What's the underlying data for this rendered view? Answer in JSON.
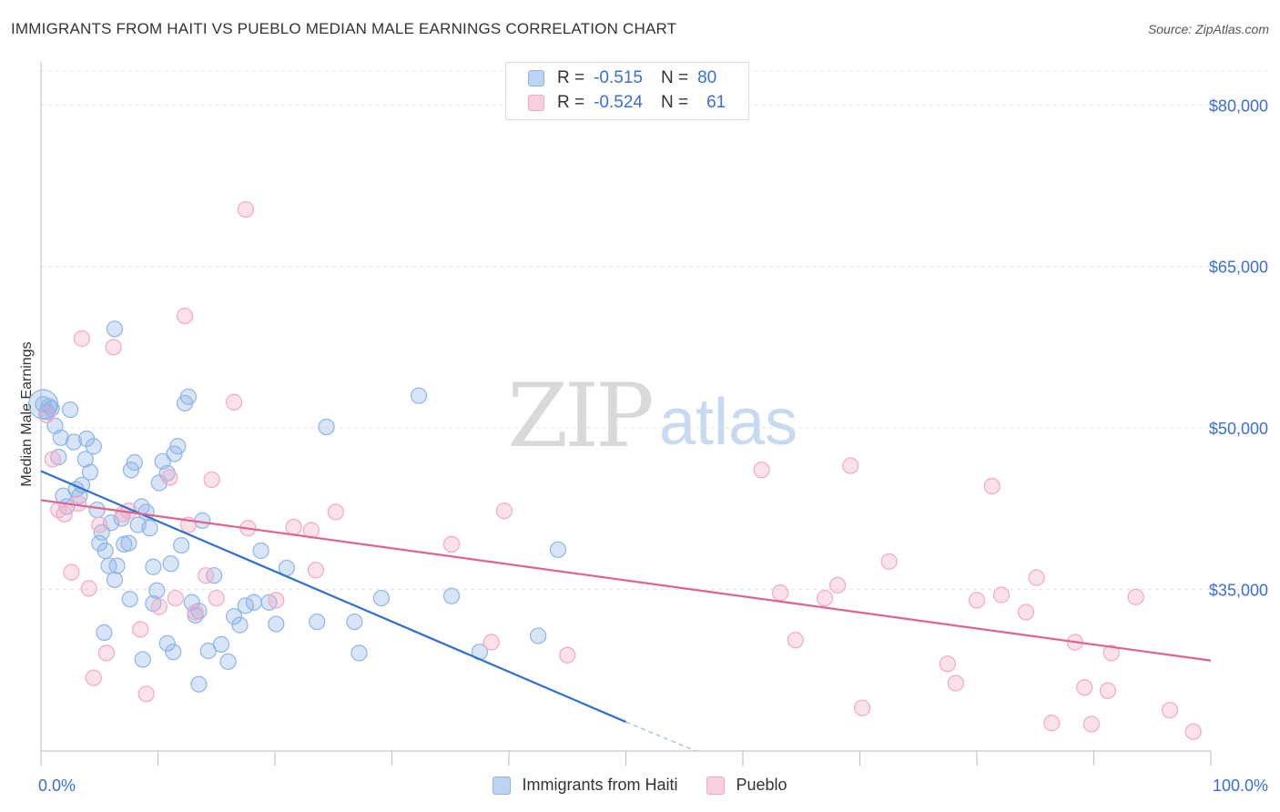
{
  "header": {
    "title": "IMMIGRANTS FROM HAITI VS PUEBLO MEDIAN MALE EARNINGS CORRELATION CHART",
    "source": "Source: ZipAtlas.com"
  },
  "watermark": {
    "zip": "ZIP",
    "atlas": "atlas"
  },
  "legend": {
    "rows": [
      {
        "r_label": "R =",
        "r_value": "-0.515",
        "n_label": "N =",
        "n_value": "80"
      },
      {
        "r_label": "R =",
        "r_value": "-0.524",
        "n_label": "N =",
        "n_value": "61"
      }
    ]
  },
  "chart_data": {
    "type": "scatter",
    "title": "IMMIGRANTS FROM HAITI VS PUEBLO MEDIAN MALE EARNINGS CORRELATION CHART",
    "xlabel": "",
    "ylabel": "Median Male Earnings",
    "xlim": [
      0,
      100
    ],
    "ylim": [
      20000,
      84000
    ],
    "x_tick_labels": [
      "0.0%",
      "100.0%"
    ],
    "y_ticks": [
      35000,
      50000,
      65000,
      80000
    ],
    "y_tick_labels": [
      "$35,000",
      "$50,000",
      "$65,000",
      "$80,000"
    ],
    "grid": true,
    "legend_position": "top-center",
    "series": [
      {
        "name": "Immigrants from Haiti",
        "color": "#8fb4e8",
        "line_color": "#2f6fd0",
        "trend": {
          "x": [
            0,
            50
          ],
          "y": [
            46000,
            22700
          ],
          "dashed_to": [
            56,
            20000
          ]
        },
        "points": [
          [
            0.2,
            52200
          ],
          [
            0.5,
            51500
          ],
          [
            0.7,
            52000
          ],
          [
            0.9,
            51800
          ],
          [
            1.2,
            50200
          ],
          [
            1.5,
            47300
          ],
          [
            1.7,
            49100
          ],
          [
            1.9,
            43700
          ],
          [
            2.2,
            42700
          ],
          [
            2.5,
            51700
          ],
          [
            2.8,
            48700
          ],
          [
            3.0,
            44300
          ],
          [
            3.3,
            43700
          ],
          [
            3.5,
            44700
          ],
          [
            3.8,
            47100
          ],
          [
            3.9,
            49000
          ],
          [
            4.2,
            45900
          ],
          [
            4.5,
            48300
          ],
          [
            4.8,
            42400
          ],
          [
            5.0,
            39300
          ],
          [
            5.2,
            40300
          ],
          [
            5.5,
            38600
          ],
          [
            5.8,
            37200
          ],
          [
            6.0,
            41200
          ],
          [
            6.3,
            35900
          ],
          [
            6.5,
            37200
          ],
          [
            6.9,
            41600
          ],
          [
            7.1,
            39200
          ],
          [
            7.5,
            39300
          ],
          [
            7.7,
            46100
          ],
          [
            8.0,
            46800
          ],
          [
            8.3,
            41000
          ],
          [
            8.6,
            42700
          ],
          [
            9.0,
            42200
          ],
          [
            9.3,
            40700
          ],
          [
            9.6,
            37100
          ],
          [
            9.9,
            34900
          ],
          [
            10.1,
            44900
          ],
          [
            10.4,
            46900
          ],
          [
            10.8,
            45800
          ],
          [
            11.1,
            37400
          ],
          [
            11.4,
            47600
          ],
          [
            11.7,
            48300
          ],
          [
            12.0,
            39100
          ],
          [
            12.3,
            52300
          ],
          [
            12.6,
            52900
          ],
          [
            12.9,
            33800
          ],
          [
            13.2,
            32600
          ],
          [
            13.5,
            33000
          ],
          [
            13.8,
            41400
          ],
          [
            14.3,
            29300
          ],
          [
            14.8,
            36300
          ],
          [
            15.4,
            29900
          ],
          [
            16.0,
            28300
          ],
          [
            16.5,
            32500
          ],
          [
            17.0,
            31700
          ],
          [
            17.5,
            33500
          ],
          [
            18.2,
            33800
          ],
          [
            18.8,
            38600
          ],
          [
            19.5,
            33800
          ],
          [
            20.1,
            31800
          ],
          [
            21.0,
            37000
          ],
          [
            23.6,
            32000
          ],
          [
            24.4,
            50100
          ],
          [
            26.8,
            32000
          ],
          [
            27.2,
            29100
          ],
          [
            29.1,
            34200
          ],
          [
            32.3,
            53000
          ],
          [
            35.1,
            34400
          ],
          [
            37.5,
            29200
          ],
          [
            42.5,
            30700
          ],
          [
            44.2,
            38700
          ],
          [
            8.7,
            28500
          ],
          [
            9.6,
            33700
          ],
          [
            7.6,
            34100
          ],
          [
            5.4,
            31000
          ],
          [
            6.3,
            59200
          ],
          [
            10.8,
            30000
          ],
          [
            13.5,
            26200
          ],
          [
            11.3,
            29200
          ]
        ]
      },
      {
        "name": "Pueblo",
        "color": "#f3a9c2",
        "line_color": "#e0628f",
        "trend": {
          "x": [
            0,
            100
          ],
          "y": [
            43300,
            28400
          ]
        },
        "points": [
          [
            0.5,
            51200
          ],
          [
            1.0,
            47100
          ],
          [
            1.5,
            42400
          ],
          [
            2.0,
            42000
          ],
          [
            2.6,
            36600
          ],
          [
            3.2,
            43000
          ],
          [
            3.5,
            58300
          ],
          [
            4.1,
            35100
          ],
          [
            4.5,
            26800
          ],
          [
            5.0,
            41000
          ],
          [
            5.6,
            29100
          ],
          [
            6.2,
            57500
          ],
          [
            7.0,
            42000
          ],
          [
            7.5,
            42300
          ],
          [
            8.5,
            31300
          ],
          [
            9.0,
            25300
          ],
          [
            10.1,
            33400
          ],
          [
            11.0,
            45400
          ],
          [
            11.5,
            34200
          ],
          [
            12.3,
            60400
          ],
          [
            12.6,
            41000
          ],
          [
            13.2,
            32900
          ],
          [
            14.1,
            36300
          ],
          [
            14.6,
            45200
          ],
          [
            15.0,
            34200
          ],
          [
            16.5,
            52400
          ],
          [
            17.5,
            70300
          ],
          [
            17.7,
            40700
          ],
          [
            20.1,
            34000
          ],
          [
            21.6,
            40800
          ],
          [
            23.1,
            40500
          ],
          [
            23.5,
            36800
          ],
          [
            25.2,
            42200
          ],
          [
            35.1,
            39200
          ],
          [
            38.5,
            30100
          ],
          [
            39.6,
            42300
          ],
          [
            45.0,
            28900
          ],
          [
            61.6,
            46100
          ],
          [
            63.2,
            34700
          ],
          [
            64.5,
            30300
          ],
          [
            67.0,
            34200
          ],
          [
            68.1,
            35400
          ],
          [
            69.2,
            46500
          ],
          [
            70.2,
            24000
          ],
          [
            72.5,
            37600
          ],
          [
            77.5,
            28100
          ],
          [
            78.2,
            26300
          ],
          [
            80.0,
            34000
          ],
          [
            81.3,
            44600
          ],
          [
            82.1,
            34500
          ],
          [
            84.2,
            32900
          ],
          [
            85.1,
            36100
          ],
          [
            86.4,
            22600
          ],
          [
            88.4,
            30100
          ],
          [
            89.2,
            25900
          ],
          [
            89.8,
            22500
          ],
          [
            91.2,
            25600
          ],
          [
            91.5,
            29100
          ],
          [
            93.6,
            34300
          ],
          [
            96.5,
            23800
          ],
          [
            98.5,
            21800
          ]
        ]
      }
    ]
  }
}
